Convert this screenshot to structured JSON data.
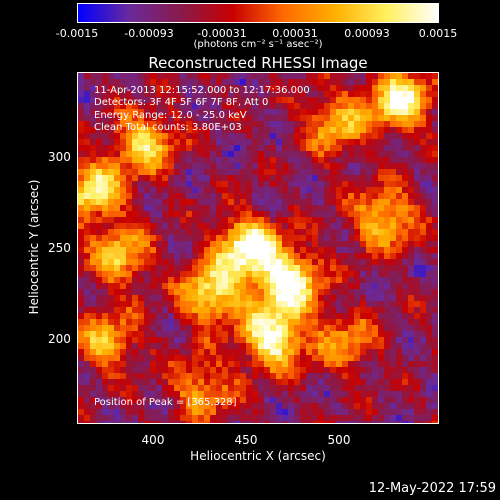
{
  "colorbar": {
    "ticks": [
      "-0.0015",
      "-0.00093",
      "-0.00031",
      "0.00031",
      "0.00093",
      "0.0015"
    ],
    "units_label": "(photons cm⁻² s⁻¹ asec⁻²)"
  },
  "title": "Reconstructed RHESSI Image",
  "info_lines": [
    "11-Apr-2013 12:15:52.000 to 12:17:36.000",
    "Detectors: 3F 4F 5F 6F 7F 8F, Att 0",
    "Energy Range: 12.0 - 25.0 keV",
    "Clean    Total counts: 3.80E+03"
  ],
  "peak_label": "Position of Peak = [365,328]",
  "date_stamp": "12-May-2022 17:59",
  "chart_data": {
    "type": "heatmap",
    "title": "Reconstructed RHESSI Image",
    "xlabel": "Heliocentric X (arcsec)",
    "ylabel": "Heliocentric Y (arcsec)",
    "xlim": [
      360,
      548
    ],
    "ylim": [
      147,
      332
    ],
    "x_ticks": [
      400,
      450,
      500
    ],
    "y_ticks": [
      200,
      250,
      300
    ],
    "colorbar_range": [
      -0.0015,
      0.0015
    ],
    "colormap": [
      "#0000ff",
      "#6a2a9a",
      "#8a1a4a",
      "#c80000",
      "#ff6a00",
      "#ffb000",
      "#fff060",
      "#ffffff"
    ],
    "peak": [
      365,
      328
    ],
    "hot_regions": [
      {
        "x": 368,
        "y": 270,
        "level": 0.8
      },
      {
        "x": 395,
        "y": 295,
        "level": 0.7
      },
      {
        "x": 382,
        "y": 235,
        "level": 0.65
      },
      {
        "x": 448,
        "y": 240,
        "level": 0.95
      },
      {
        "x": 470,
        "y": 222,
        "level": 1.0
      },
      {
        "x": 462,
        "y": 192,
        "level": 0.95
      },
      {
        "x": 430,
        "y": 215,
        "level": 0.8
      },
      {
        "x": 520,
        "y": 255,
        "level": 0.7
      },
      {
        "x": 528,
        "y": 318,
        "level": 0.9
      },
      {
        "x": 495,
        "y": 305,
        "level": 0.6
      },
      {
        "x": 425,
        "y": 165,
        "level": 0.55
      },
      {
        "x": 500,
        "y": 190,
        "level": 0.5
      },
      {
        "x": 375,
        "y": 190,
        "level": 0.6
      }
    ]
  }
}
